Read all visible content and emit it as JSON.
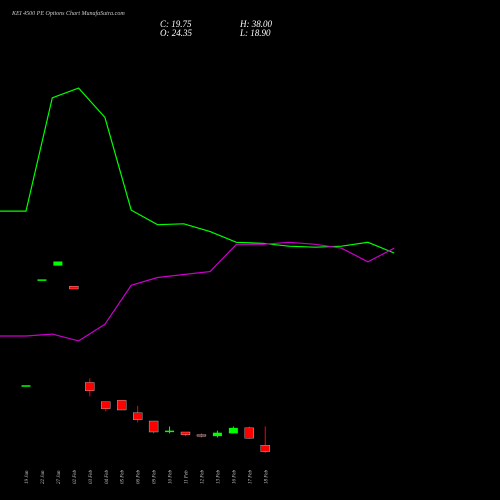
{
  "chart_data": {
    "type": "candlestick",
    "title": "KEI 4500 PE Options Chart MunafaSutra.com",
    "ohlc_text": {
      "close": "C: 19.75",
      "open": "O: 24.35",
      "high": "H: 38.00",
      "low": "L: 18.90"
    },
    "ylim": [
      10,
      170
    ],
    "categories": [
      "19 Jan",
      "22 Jan",
      "27 Jan",
      "02 Feb",
      "03 Feb",
      "04 Feb",
      "05 Feb",
      "06 Feb",
      "09 Feb",
      "10 Feb",
      "11 Feb",
      "12 Feb",
      "13 Feb",
      "16 Feb",
      "17 Feb",
      "18 Feb"
    ],
    "candles": [
      {
        "x": "19 Jan",
        "open": 68.0,
        "high": 68.0,
        "low": 68.0,
        "close": 68.0
      },
      {
        "x": "22 Jan",
        "open": 145.0,
        "high": 145.0,
        "low": 145.0,
        "close": 145.0
      },
      {
        "x": "27 Jan",
        "open": 155.0,
        "high": 158.0,
        "low": 155.0,
        "close": 158.0
      },
      {
        "x": "02 Feb",
        "open": 140.0,
        "high": 140.0,
        "low": 138.0,
        "close": 138.0
      },
      {
        "x": "03 Feb",
        "open": 70.0,
        "high": 73.0,
        "low": 60.0,
        "close": 64.0
      },
      {
        "x": "04 Feb",
        "open": 56.0,
        "high": 56.0,
        "low": 49.0,
        "close": 51.0
      },
      {
        "x": "05 Feb",
        "open": 57.0,
        "high": 57.0,
        "low": 50.0,
        "close": 50.0
      },
      {
        "x": "06 Feb",
        "open": 48.0,
        "high": 53.0,
        "low": 41.0,
        "close": 43.0
      },
      {
        "x": "09 Feb",
        "open": 42.0,
        "high": 42.0,
        "low": 33.0,
        "close": 34.0
      },
      {
        "x": "10 Feb",
        "open": 34.0,
        "high": 38.0,
        "low": 33.0,
        "close": 35.0
      },
      {
        "x": "11 Feb",
        "open": 34.0,
        "high": 34.0,
        "low": 31.0,
        "close": 32.0
      },
      {
        "x": "12 Feb",
        "open": 32.0,
        "high": 33.0,
        "low": 30.0,
        "close": 31.0
      },
      {
        "x": "13 Feb",
        "open": 31.0,
        "high": 35.0,
        "low": 30.0,
        "close": 33.5
      },
      {
        "x": "16 Feb",
        "open": 33.0,
        "high": 38.0,
        "low": 33.0,
        "close": 37.0
      },
      {
        "x": "17 Feb",
        "open": 37.0,
        "high": 38.0,
        "low": 29.0,
        "close": 29.5
      },
      {
        "x": "18 Feb",
        "open": 24.35,
        "high": 38.0,
        "low": 18.9,
        "close": 19.75
      }
    ],
    "overlay_series": [
      {
        "color": "#00ff00",
        "values": [
          155,
          155,
          271,
          281,
          251,
          156,
          141,
          142,
          134,
          123,
          122,
          119,
          118,
          119,
          123,
          112
        ]
      },
      {
        "color": "#cc00cc",
        "values": [
          27,
          27,
          29,
          22,
          39,
          79,
          87,
          90,
          93,
          121,
          121,
          123,
          121,
          117,
          103,
          117
        ]
      }
    ],
    "overlay_ylim": [
      -100,
      320
    ],
    "colors": {
      "up": "#00ff00",
      "down": "#ff0000",
      "background": "#000000"
    }
  }
}
